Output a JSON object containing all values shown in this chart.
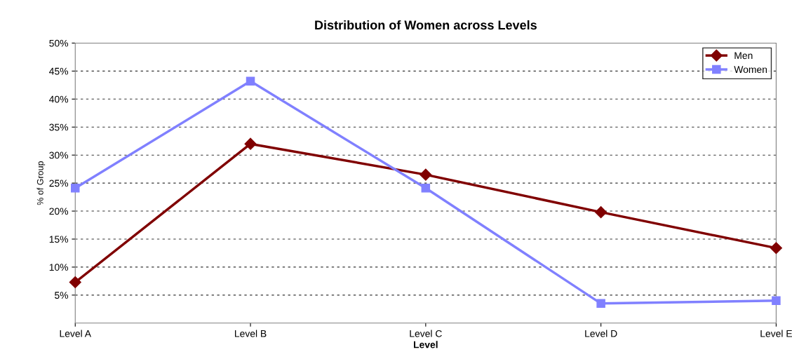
{
  "chart_data": {
    "type": "line",
    "title": "Distribution of Women across Levels",
    "xlabel": "Level",
    "ylabel": "% of Group",
    "categories": [
      "Level A",
      "Level B",
      "Level C",
      "Level D",
      "Level E"
    ],
    "series": [
      {
        "name": "Men",
        "color": "#800000",
        "marker": "diamond",
        "values": [
          7.3,
          32.0,
          26.5,
          19.8,
          13.4
        ]
      },
      {
        "name": "Women",
        "color": "#8080ff",
        "marker": "square",
        "values": [
          24.1,
          43.2,
          24.1,
          3.5,
          4.0
        ]
      }
    ],
    "ylim": [
      0,
      50
    ],
    "yticks": [
      {
        "value": 5,
        "label": "5%"
      },
      {
        "value": 10,
        "label": "10%"
      },
      {
        "value": 15,
        "label": "15%"
      },
      {
        "value": 20,
        "label": "20%"
      },
      {
        "value": 25,
        "label": "25%"
      },
      {
        "value": 30,
        "label": "30%"
      },
      {
        "value": 35,
        "label": "35%"
      },
      {
        "value": 40,
        "label": "40%"
      },
      {
        "value": 45,
        "label": "45%"
      },
      {
        "value": 50,
        "label": "50%"
      }
    ],
    "grid": "y",
    "legend": "top right",
    "line_style": "solid"
  }
}
